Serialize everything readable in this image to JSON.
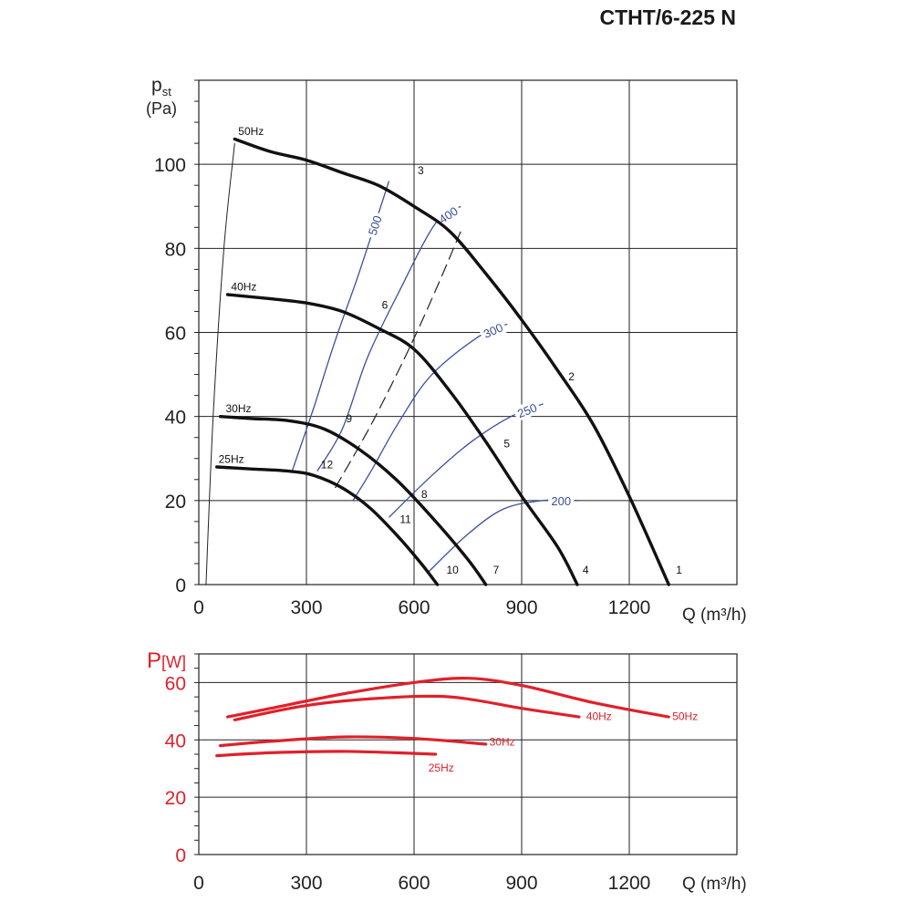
{
  "title": "CTHT/6-225 N",
  "colors": {
    "pressure": "#111111",
    "efficiency": "#3a4f9a",
    "power": "#e0202a",
    "grid": "#222222"
  },
  "chart_data": [
    {
      "type": "line",
      "ylabel_main": "p",
      "ylabel_sub": "st",
      "yunit": "(Pa)",
      "xlabel": "Q (m³/h)",
      "xlim": [
        0,
        1500
      ],
      "ylim": [
        0,
        120
      ],
      "xticks": [
        0,
        300,
        600,
        900,
        1200
      ],
      "yticks": [
        0,
        20,
        40,
        60,
        80,
        100
      ],
      "grid": true,
      "series": [
        {
          "name": "50Hz",
          "points": [
            [
              100,
              106
            ],
            [
              200,
              103
            ],
            [
              300,
              101
            ],
            [
              400,
              98
            ],
            [
              500,
              95
            ],
            [
              600,
              90
            ],
            [
              700,
              84
            ],
            [
              800,
              74
            ],
            [
              900,
              63
            ],
            [
              1000,
              51
            ],
            [
              1100,
              38
            ],
            [
              1200,
              21
            ],
            [
              1310,
              0
            ]
          ]
        },
        {
          "name": "40Hz",
          "points": [
            [
              80,
              69
            ],
            [
              200,
              68
            ],
            [
              300,
              67
            ],
            [
              400,
              65
            ],
            [
              500,
              61
            ],
            [
              600,
              56
            ],
            [
              700,
              46
            ],
            [
              800,
              34
            ],
            [
              900,
              21
            ],
            [
              1000,
              9
            ],
            [
              1055,
              0
            ]
          ]
        },
        {
          "name": "30Hz",
          "points": [
            [
              60,
              40
            ],
            [
              150,
              39.5
            ],
            [
              250,
              39
            ],
            [
              350,
              37
            ],
            [
              450,
              32
            ],
            [
              550,
              25
            ],
            [
              650,
              16
            ],
            [
              750,
              6
            ],
            [
              800,
              0
            ]
          ]
        },
        {
          "name": "25Hz",
          "points": [
            [
              50,
              28
            ],
            [
              150,
              27.5
            ],
            [
              250,
              27
            ],
            [
              320,
              26
            ],
            [
              400,
              23
            ],
            [
              480,
              18
            ],
            [
              560,
              11
            ],
            [
              620,
              5
            ],
            [
              665,
              0
            ]
          ]
        }
      ],
      "system_curve": [
        [
          20,
          0
        ],
        [
          40,
          40
        ],
        [
          70,
          80
        ],
        [
          100,
          105
        ]
      ],
      "dashed_curve": [
        [
          380,
          23
        ],
        [
          480,
          38
        ],
        [
          580,
          55
        ],
        [
          660,
          70
        ],
        [
          730,
          84
        ]
      ],
      "efficiency_curves": [
        {
          "label": "500",
          "points": [
            [
              260,
              27
            ],
            [
              320,
              42
            ],
            [
              380,
              58
            ],
            [
              450,
              75
            ],
            [
              530,
              96
            ]
          ]
        },
        {
          "label": "400",
          "points": [
            [
              330,
              27
            ],
            [
              400,
              37
            ],
            [
              470,
              54
            ],
            [
              560,
              70
            ],
            [
              660,
              86
            ],
            [
              730,
              90
            ]
          ]
        },
        {
          "label": "300",
          "points": [
            [
              430,
              20
            ],
            [
              480,
              27
            ],
            [
              560,
              39
            ],
            [
              650,
              50
            ],
            [
              780,
              59
            ],
            [
              860,
              62
            ]
          ]
        },
        {
          "label": "250",
          "points": [
            [
              530,
              16
            ],
            [
              650,
              26
            ],
            [
              760,
              34
            ],
            [
              870,
              40
            ],
            [
              960,
              43
            ]
          ]
        },
        {
          "label": "200",
          "points": [
            [
              640,
              3
            ],
            [
              750,
              12
            ],
            [
              850,
              18
            ],
            [
              960,
              20
            ],
            [
              1060,
              20
            ]
          ]
        }
      ],
      "point_labels": [
        {
          "label": "1",
          "x": 1320,
          "y": 2
        },
        {
          "label": "2",
          "x": 1020,
          "y": 48
        },
        {
          "label": "3",
          "x": 600,
          "y": 97
        },
        {
          "label": "4",
          "x": 1060,
          "y": 2
        },
        {
          "label": "5",
          "x": 840,
          "y": 32
        },
        {
          "label": "6",
          "x": 500,
          "y": 65
        },
        {
          "label": "7",
          "x": 810,
          "y": 2
        },
        {
          "label": "8",
          "x": 610,
          "y": 20
        },
        {
          "label": "9",
          "x": 400,
          "y": 38
        },
        {
          "label": "10",
          "x": 680,
          "y": 2
        },
        {
          "label": "11",
          "x": 550,
          "y": 14
        },
        {
          "label": "12",
          "x": 330,
          "y": 27
        }
      ],
      "curve_labels": [
        {
          "label": "50Hz",
          "x": 110,
          "y": 107
        },
        {
          "label": "40Hz",
          "x": 90,
          "y": 70
        },
        {
          "label": "30Hz",
          "x": 75,
          "y": 41
        },
        {
          "label": "25Hz",
          "x": 55,
          "y": 29
        }
      ]
    },
    {
      "type": "line",
      "ylabel_main": "P",
      "yunit": "[W]",
      "xlabel": "Q (m³/h)",
      "xlim": [
        0,
        1500
      ],
      "ylim": [
        0,
        70
      ],
      "xticks": [
        0,
        300,
        600,
        900,
        1200
      ],
      "yticks": [
        0,
        20,
        40,
        60
      ],
      "grid": true,
      "series": [
        {
          "name": "50Hz",
          "points": [
            [
              80,
              48
            ],
            [
              200,
              51
            ],
            [
              400,
              56
            ],
            [
              600,
              60
            ],
            [
              750,
              61.5
            ],
            [
              900,
              59
            ],
            [
              1100,
              53
            ],
            [
              1310,
              48
            ]
          ]
        },
        {
          "name": "40Hz",
          "points": [
            [
              100,
              47
            ],
            [
              300,
              52
            ],
            [
              500,
              54.5
            ],
            [
              700,
              55
            ],
            [
              900,
              51
            ],
            [
              1060,
              48
            ]
          ]
        },
        {
          "name": "30Hz",
          "points": [
            [
              60,
              38
            ],
            [
              200,
              39.5
            ],
            [
              400,
              41
            ],
            [
              600,
              40.5
            ],
            [
              800,
              38.5
            ]
          ]
        },
        {
          "name": "25Hz",
          "points": [
            [
              50,
              34.5
            ],
            [
              200,
              35.5
            ],
            [
              400,
              36
            ],
            [
              550,
              35.5
            ],
            [
              660,
              35
            ]
          ]
        }
      ],
      "curve_labels": [
        {
          "label": "50Hz",
          "x": 1320,
          "y": 47
        },
        {
          "label": "40Hz",
          "x": 1080,
          "y": 47
        },
        {
          "label": "30Hz",
          "x": 810,
          "y": 38
        },
        {
          "label": "25Hz",
          "x": 640,
          "y": 29
        }
      ]
    }
  ]
}
